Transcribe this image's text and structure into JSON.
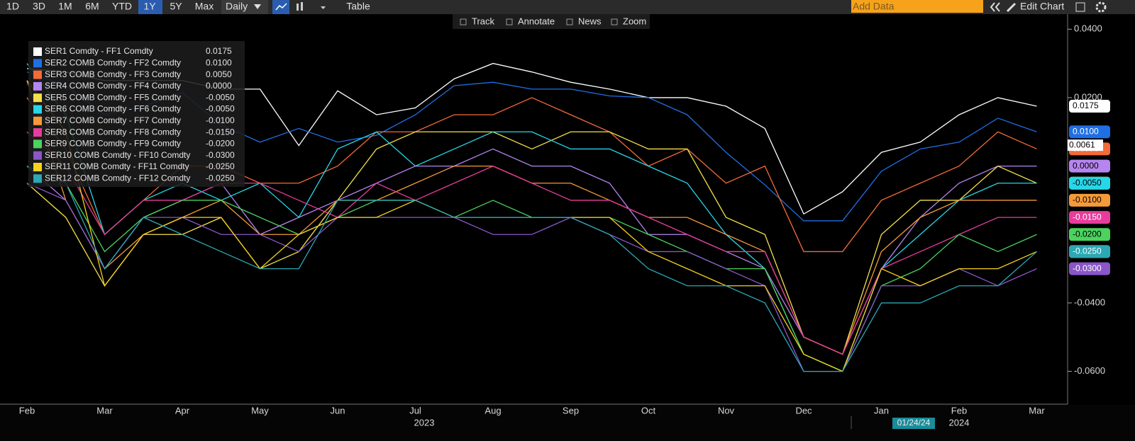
{
  "toolbar": {
    "ranges": [
      "1D",
      "3D",
      "1M",
      "6M",
      "YTD",
      "1Y",
      "5Y",
      "Max"
    ],
    "active_range": "1Y",
    "frequency": "Daily",
    "table": "Table",
    "add_data": "Add Data",
    "edit_chart": "Edit Chart",
    "tools": [
      "Track",
      "Annotate",
      "News",
      "Zoom"
    ]
  },
  "chart_data": {
    "type": "line",
    "categories": [
      "Feb",
      null,
      "Mar",
      null,
      "Apr",
      null,
      "May",
      null,
      "Jun",
      null,
      "Jul",
      null,
      "Aug",
      null,
      "Sep",
      null,
      "Oct",
      null,
      "Nov",
      null,
      "Dec",
      null,
      "Jan",
      null,
      "Feb",
      null,
      "Mar"
    ],
    "x_group_labels": [
      "2023",
      "2024"
    ],
    "cursor_date": "01/24/24",
    "cursor_value": 0.0061,
    "ylim": [
      -0.0696,
      0.0444
    ],
    "yticks": [
      {
        "value": 0.04,
        "label": "0.0400"
      },
      {
        "value": 0.02,
        "label": "0.0200"
      },
      {
        "value": -0.04,
        "label": "-0.0400"
      },
      {
        "value": -0.06,
        "label": "-0.0600"
      }
    ],
    "series": [
      {
        "name": "SER1 Comdty - FF1 Comdty",
        "color": "#ffffff",
        "values": [
          0.0285,
          0.0275,
          0.025,
          0.025,
          0.025,
          0.0225,
          0.0225,
          0.006,
          0.022,
          0.015,
          0.017,
          0.0255,
          0.03,
          0.0275,
          0.0245,
          0.0225,
          0.02,
          0.02,
          0.0175,
          0.011,
          -0.014,
          -0.0075,
          0.004,
          0.007,
          0.015,
          0.02,
          0.0175
        ],
        "value_labels": [
          null,
          null,
          null,
          null,
          null,
          null,
          null,
          null,
          null,
          null,
          null,
          null,
          null,
          null,
          null,
          null,
          null,
          null,
          null,
          null,
          null,
          null,
          null,
          null,
          null,
          null,
          "0.0175"
        ]
      },
      {
        "name": "SER2 COMB Comdty - FF2 Comdty",
        "color": "#1f6fe5",
        "values": [
          0.0275,
          0.0235,
          0.015,
          0.0175,
          0.0215,
          0.012,
          0.007,
          0.011,
          0.007,
          0.009,
          0.015,
          0.0235,
          0.0245,
          0.0225,
          0.0225,
          0.0205,
          0.02,
          0.015,
          0.004,
          -0.0055,
          -0.016,
          -0.016,
          -0.0015,
          0.005,
          0.007,
          0.014,
          0.01
        ],
        "value_labels": [
          null,
          null,
          null,
          null,
          null,
          null,
          null,
          null,
          null,
          null,
          null,
          null,
          null,
          null,
          null,
          null,
          null,
          null,
          null,
          null,
          null,
          null,
          null,
          null,
          null,
          null,
          "0.0100"
        ]
      },
      {
        "name": "SER3 COMB Comdty - FF3 Comdty",
        "color": "#f26b38",
        "values": [
          0.02,
          0.005,
          -0.02,
          -0.01,
          0.0,
          0.0,
          -0.005,
          -0.005,
          0.0,
          0.01,
          0.01,
          0.015,
          0.015,
          0.02,
          0.015,
          0.01,
          0.0,
          0.005,
          -0.005,
          0.0,
          -0.025,
          -0.025,
          -0.01,
          -0.005,
          0.0,
          0.01,
          0.005
        ],
        "value_labels": [
          null,
          null,
          null,
          null,
          null,
          null,
          null,
          null,
          null,
          null,
          null,
          null,
          null,
          null,
          null,
          null,
          null,
          null,
          null,
          null,
          null,
          null,
          null,
          null,
          null,
          null,
          "0.0050"
        ]
      },
      {
        "name": "SER4 COMB Comdty - FF4 Comdty",
        "color": "#b685f0",
        "values": [
          0.0,
          -0.01,
          -0.03,
          -0.015,
          -0.01,
          -0.005,
          -0.02,
          -0.015,
          -0.01,
          -0.005,
          0.0,
          0.0,
          0.005,
          0.0,
          0.0,
          -0.005,
          -0.02,
          -0.02,
          -0.025,
          -0.03,
          -0.05,
          -0.055,
          -0.03,
          -0.015,
          -0.005,
          0.0,
          0.0
        ],
        "value_labels": [
          null,
          null,
          null,
          null,
          null,
          null,
          null,
          null,
          null,
          null,
          null,
          null,
          null,
          null,
          null,
          null,
          null,
          null,
          null,
          null,
          null,
          null,
          null,
          null,
          null,
          null,
          "0.0000"
        ]
      },
      {
        "name": "SER5 COMB Comdty - FF5 Comdty",
        "color": "#f5e04a",
        "values": [
          -0.005,
          -0.015,
          -0.035,
          -0.02,
          -0.02,
          -0.015,
          -0.03,
          -0.025,
          -0.01,
          0.005,
          0.01,
          0.01,
          0.01,
          0.005,
          0.01,
          0.01,
          0.005,
          0.005,
          -0.015,
          -0.02,
          -0.05,
          -0.055,
          -0.02,
          -0.01,
          -0.01,
          0.0,
          -0.005
        ],
        "value_labels": [
          null,
          null,
          null,
          null,
          null,
          null,
          null,
          null,
          null,
          null,
          null,
          null,
          null,
          null,
          null,
          null,
          null,
          null,
          null,
          null,
          null,
          null,
          null,
          null,
          null,
          null,
          "-0.0050"
        ]
      },
      {
        "name": "SER6 COMB Comdty - FF6 Comdty",
        "color": "#26d7e8",
        "values": [
          0.03,
          0.015,
          -0.02,
          -0.01,
          -0.005,
          -0.01,
          -0.005,
          -0.015,
          0.005,
          0.01,
          0.0,
          0.005,
          0.01,
          0.01,
          0.005,
          0.005,
          0.0,
          -0.005,
          -0.02,
          -0.03,
          -0.055,
          -0.06,
          -0.03,
          -0.02,
          -0.01,
          -0.005,
          -0.005
        ],
        "value_labels": [
          null,
          null,
          null,
          null,
          null,
          null,
          null,
          null,
          null,
          null,
          null,
          null,
          null,
          null,
          null,
          null,
          null,
          null,
          null,
          null,
          null,
          null,
          null,
          null,
          null,
          null,
          "-0.0050"
        ]
      },
      {
        "name": "SER7 COMB Comdty - FF7 Comdty",
        "color": "#f59a3a",
        "values": [
          0.025,
          -0.01,
          -0.03,
          -0.02,
          -0.015,
          -0.01,
          -0.02,
          -0.02,
          -0.01,
          -0.01,
          -0.005,
          0.0,
          0.0,
          -0.005,
          -0.005,
          -0.01,
          -0.015,
          -0.015,
          -0.02,
          -0.025,
          -0.05,
          -0.055,
          -0.025,
          -0.015,
          -0.01,
          -0.01,
          -0.01
        ],
        "value_labels": [
          null,
          null,
          null,
          null,
          null,
          null,
          null,
          null,
          null,
          null,
          null,
          null,
          null,
          null,
          null,
          null,
          null,
          null,
          null,
          null,
          null,
          null,
          null,
          null,
          null,
          null,
          "-0.0100"
        ]
      },
      {
        "name": "SER8 COMB Comdty - FF8 Comdty",
        "color": "#e83c9c",
        "values": [
          0.01,
          0.0,
          -0.02,
          -0.01,
          -0.01,
          -0.005,
          -0.005,
          -0.01,
          -0.015,
          -0.005,
          -0.01,
          -0.005,
          0.0,
          -0.005,
          -0.01,
          -0.01,
          -0.015,
          -0.02,
          -0.025,
          -0.025,
          -0.05,
          -0.055,
          -0.03,
          -0.025,
          -0.02,
          -0.015,
          -0.015
        ],
        "value_labels": [
          null,
          null,
          null,
          null,
          null,
          null,
          null,
          null,
          null,
          null,
          null,
          null,
          null,
          null,
          null,
          null,
          null,
          null,
          null,
          null,
          null,
          null,
          null,
          null,
          null,
          null,
          "-0.0150"
        ]
      },
      {
        "name": "SER9 COMB Comdty - FF9 Comdty",
        "color": "#4bd35e",
        "values": [
          0.0,
          -0.005,
          -0.025,
          -0.015,
          -0.01,
          -0.01,
          -0.015,
          -0.02,
          -0.015,
          -0.01,
          -0.01,
          -0.015,
          -0.01,
          -0.015,
          -0.015,
          -0.015,
          -0.02,
          -0.025,
          -0.03,
          -0.03,
          -0.055,
          -0.06,
          -0.035,
          -0.03,
          -0.02,
          -0.025,
          -0.02
        ],
        "value_labels": [
          null,
          null,
          null,
          null,
          null,
          null,
          null,
          null,
          null,
          null,
          null,
          null,
          null,
          null,
          null,
          null,
          null,
          null,
          null,
          null,
          null,
          null,
          null,
          null,
          null,
          null,
          "-0.0200"
        ]
      },
      {
        "name": "SER10 COMB Comdty - FF10 Comdty",
        "color": "#8a56c8",
        "values": [
          -0.005,
          -0.01,
          -0.03,
          -0.015,
          -0.015,
          -0.02,
          -0.02,
          -0.025,
          -0.015,
          -0.015,
          -0.015,
          -0.015,
          -0.02,
          -0.02,
          -0.015,
          -0.02,
          -0.025,
          -0.025,
          -0.03,
          -0.035,
          -0.06,
          -0.06,
          -0.035,
          -0.035,
          -0.03,
          -0.035,
          -0.03
        ],
        "value_labels": [
          null,
          null,
          null,
          null,
          null,
          null,
          null,
          null,
          null,
          null,
          null,
          null,
          null,
          null,
          null,
          null,
          null,
          null,
          null,
          null,
          null,
          null,
          null,
          null,
          null,
          null,
          "-0.0300"
        ]
      },
      {
        "name": "SER11 COMB Comdty - FF11 Comdty",
        "color": "#f7d21e",
        "values": [
          0.025,
          0.01,
          -0.035,
          -0.02,
          -0.015,
          -0.015,
          -0.03,
          -0.02,
          -0.015,
          -0.015,
          -0.01,
          -0.015,
          -0.015,
          -0.015,
          -0.015,
          -0.015,
          -0.025,
          -0.03,
          -0.035,
          -0.035,
          -0.055,
          -0.06,
          -0.03,
          -0.035,
          -0.03,
          -0.03,
          -0.025
        ],
        "value_labels": [
          null,
          null,
          null,
          null,
          null,
          null,
          null,
          null,
          null,
          null,
          null,
          null,
          null,
          null,
          null,
          null,
          null,
          null,
          null,
          null,
          null,
          null,
          null,
          null,
          null,
          null,
          "-0.0250"
        ]
      },
      {
        "name": "SER12 COMB Comdty - FF12 Comdty",
        "color": "#2aa8b4",
        "values": [
          0.0,
          -0.005,
          -0.03,
          -0.015,
          -0.02,
          -0.025,
          -0.03,
          -0.03,
          -0.01,
          -0.01,
          -0.01,
          -0.015,
          -0.015,
          -0.015,
          -0.015,
          -0.02,
          -0.03,
          -0.035,
          -0.035,
          -0.04,
          -0.06,
          -0.06,
          -0.04,
          -0.04,
          -0.035,
          -0.035,
          -0.025
        ],
        "value_labels": [
          null,
          null,
          null,
          null,
          null,
          null,
          null,
          null,
          null,
          null,
          null,
          null,
          null,
          null,
          null,
          null,
          null,
          null,
          null,
          null,
          null,
          null,
          null,
          null,
          null,
          null,
          "-0.0250"
        ]
      }
    ]
  }
}
